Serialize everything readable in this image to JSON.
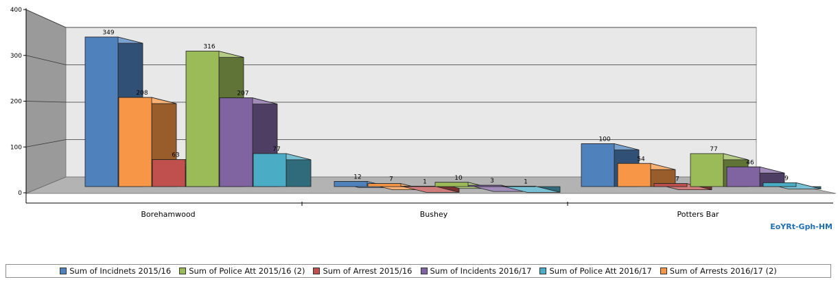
{
  "chart_data": {
    "type": "bar",
    "categories": [
      "Borehamwood",
      "Bushey",
      "Potters Bar"
    ],
    "series": [
      {
        "name": "Sum of Incidnets 2015/16",
        "values": [
          349,
          12,
          100
        ],
        "color": "#4f81bd"
      },
      {
        "name": "Sum of Arrests 2016/17 (2)",
        "values": [
          208,
          7,
          54
        ],
        "color": "#f79646"
      },
      {
        "name": "Sum of Arrest 2015/16",
        "values": [
          63,
          1,
          7
        ],
        "color": "#c0504d"
      },
      {
        "name": "Sum of Police Att 2015/16 (2)",
        "values": [
          316,
          10,
          77
        ],
        "color": "#9bbb59"
      },
      {
        "name": "Sum of Incidents 2016/17",
        "values": [
          207,
          3,
          46
        ],
        "color": "#8064a2"
      },
      {
        "name": "Sum of Police Att 2016/17",
        "values": [
          77,
          1,
          9
        ],
        "color": "#4bacc6"
      }
    ],
    "y_ticks": [
      "0",
      "100",
      "200",
      "300",
      "400"
    ],
    "ylim": [
      0,
      400
    ],
    "grid": true,
    "three_d": true,
    "legend_position": "bottom"
  },
  "legend": [
    {
      "label": "Sum of Incidnets 2015/16",
      "color": "#4f81bd"
    },
    {
      "label": "Sum of Police Att 2015/16 (2)",
      "color": "#9bbb59"
    },
    {
      "label": "Sum of Arrest 2015/16",
      "color": "#c0504d"
    },
    {
      "label": "Sum of Incidents 2016/17",
      "color": "#8064a2"
    },
    {
      "label": "Sum of Police Att 2016/17",
      "color": "#4bacc6"
    },
    {
      "label": "Sum of Arrests 2016/17 (2)",
      "color": "#f79646"
    }
  ],
  "watermark": "EoYRt-Gph-HM"
}
